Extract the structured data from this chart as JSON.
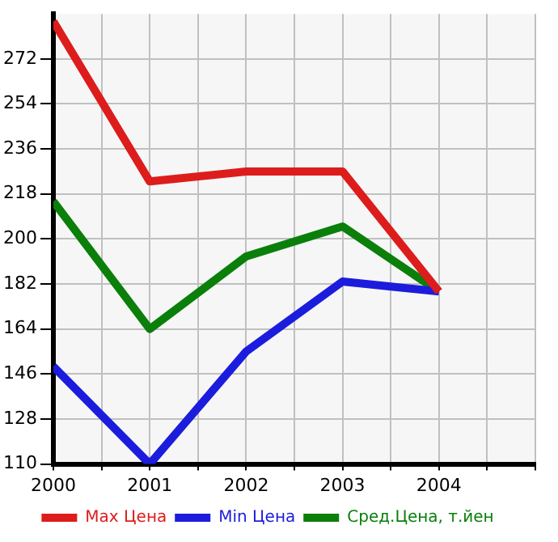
{
  "chart_data": {
    "type": "line",
    "x": [
      2000,
      2001,
      2002,
      2003,
      2004
    ],
    "series": [
      {
        "name": "Max Цена",
        "color": "#dd1c1c",
        "values": [
          287,
          223,
          227,
          227,
          179
        ]
      },
      {
        "name": "Min Цена",
        "color": "#1c1cdd",
        "values": [
          149,
          110,
          155,
          183,
          179
        ]
      },
      {
        "name": "Сред.Цена, т.йен",
        "color": "#0a7f0a",
        "values": [
          215,
          164,
          193,
          205,
          179
        ]
      }
    ],
    "xlim": [
      2000,
      2005
    ],
    "xticks": [
      2000,
      {
        "value": 2000.5,
        "label": null
      },
      2001,
      {
        "value": 2001.5,
        "label": null
      },
      2002,
      {
        "value": 2002.5,
        "label": null
      },
      2003,
      {
        "value": 2003.5,
        "label": null
      },
      2004,
      {
        "value": 2004.5,
        "label": null
      },
      {
        "value": 2005,
        "label": null
      }
    ],
    "ylim": [
      110,
      290
    ],
    "yticks": [
      110,
      128,
      146,
      164,
      182,
      200,
      218,
      236,
      254,
      272
    ],
    "grid": true,
    "legend": "bottom",
    "marker": "none",
    "line_style": "solid"
  }
}
